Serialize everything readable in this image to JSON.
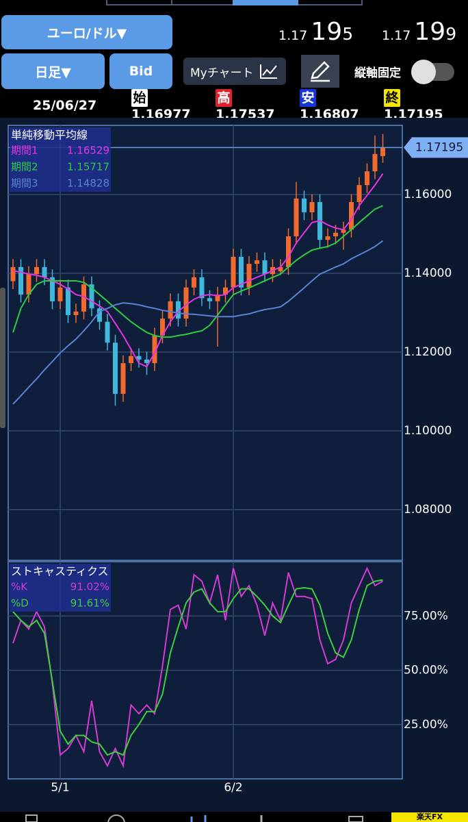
{
  "header": {
    "pair_button": "ユーロ/ドル▼",
    "bid": {
      "prefix": "1.17",
      "big": "19",
      "small": "5"
    },
    "ask": {
      "prefix": "1.17",
      "big": "19",
      "small": "9"
    },
    "period_button": "日足▼",
    "price_type_button": "Bid",
    "my_chart_button": "Myチャート",
    "axis_lock_label": "縦軸固定"
  },
  "ohlc_bar": {
    "date": "25/06/27",
    "items": [
      {
        "badge": "始",
        "value": "1.16977"
      },
      {
        "badge": "高",
        "value": "1.17537"
      },
      {
        "badge": "安",
        "value": "1.16807"
      },
      {
        "badge": "終",
        "value": "1.17195"
      }
    ]
  },
  "chart_data": [
    {
      "type": "candlestick",
      "title": "単純移動平均線",
      "categories": [
        null,
        null,
        null,
        null,
        null,
        null,
        "5/1",
        null,
        null,
        null,
        null,
        null,
        null,
        null,
        null,
        null,
        null,
        null,
        null,
        null,
        null,
        null,
        null,
        null,
        null,
        null,
        null,
        null,
        "6/2",
        null,
        null,
        null,
        null,
        null,
        null,
        null,
        null,
        null,
        null,
        null,
        null,
        null,
        null,
        null,
        null,
        null,
        null,
        null
      ],
      "open": [
        1.138,
        1.1416,
        1.1346,
        1.1398,
        1.1416,
        1.139,
        1.1329,
        1.1364,
        1.1294,
        1.1303,
        1.1372,
        1.1311,
        1.1277,
        1.1224,
        1.1094,
        1.1172,
        1.119,
        1.1181,
        1.1172,
        1.1242,
        1.1285,
        1.1329,
        1.1285,
        1.1364,
        1.139,
        1.1337,
        1.1329,
        1.1346,
        1.1364,
        1.1442,
        1.1364,
        1.1424,
        1.1433,
        1.1398,
        1.1405,
        1.1416,
        1.1494,
        1.159,
        1.1555,
        1.1581,
        1.1485,
        1.1494,
        1.1503,
        1.1511,
        1.1581,
        1.1624,
        1.1659,
        1.16977
      ],
      "high": [
        1.1436,
        1.1436,
        1.1418,
        1.1436,
        1.1436,
        1.141,
        1.1384,
        1.1384,
        1.1323,
        1.1392,
        1.1392,
        1.1331,
        1.1297,
        1.1244,
        1.1192,
        1.121,
        1.121,
        1.1201,
        1.1262,
        1.1305,
        1.1349,
        1.1349,
        1.1384,
        1.141,
        1.141,
        1.1357,
        1.1366,
        1.1384,
        1.1462,
        1.1462,
        1.1444,
        1.1453,
        1.1453,
        1.1436,
        1.1436,
        1.1514,
        1.1632,
        1.161,
        1.1601,
        1.1601,
        1.1514,
        1.1523,
        1.1531,
        1.1601,
        1.1644,
        1.1679,
        1.175,
        1.17537
      ],
      "low": [
        1.136,
        1.1326,
        1.1326,
        1.1378,
        1.137,
        1.1309,
        1.1309,
        1.1274,
        1.1274,
        1.1283,
        1.1291,
        1.1257,
        1.1204,
        1.1064,
        1.1074,
        1.1152,
        1.1161,
        1.1142,
        1.1152,
        1.1222,
        1.1265,
        1.1265,
        1.1265,
        1.1344,
        1.1317,
        1.1309,
        1.1214,
        1.1326,
        1.1344,
        1.1344,
        1.1344,
        1.1404,
        1.1378,
        1.1378,
        1.1396,
        1.1396,
        1.1474,
        1.1535,
        1.1535,
        1.1465,
        1.1465,
        1.1474,
        1.146,
        1.1491,
        1.1561,
        1.1604,
        1.1639,
        1.16807
      ],
      "close": [
        1.1416,
        1.1346,
        1.1398,
        1.1416,
        1.139,
        1.1329,
        1.1364,
        1.1294,
        1.1303,
        1.1372,
        1.1311,
        1.1277,
        1.1224,
        1.1094,
        1.1172,
        1.119,
        1.1181,
        1.1172,
        1.1242,
        1.1285,
        1.1329,
        1.1285,
        1.1364,
        1.139,
        1.1337,
        1.1329,
        1.1346,
        1.1364,
        1.1442,
        1.1364,
        1.1424,
        1.1433,
        1.1398,
        1.1416,
        1.1416,
        1.1494,
        1.159,
        1.1555,
        1.1581,
        1.1485,
        1.1494,
        1.1503,
        1.1511,
        1.1581,
        1.1624,
        1.1659,
        1.1703,
        1.17195
      ],
      "up_color": "#f26a2e",
      "down_color": "#3fb8dc",
      "series": [
        {
          "name": "期間1",
          "color": "#e535e0",
          "last_label": "1.16529",
          "values": [
            1.1407,
            1.1403,
            1.1398,
            1.1395,
            1.139,
            1.1381,
            1.1372,
            1.136,
            1.1346,
            1.1341,
            1.1329,
            1.1317,
            1.1303,
            1.1273,
            1.1242,
            1.1207,
            1.1172,
            1.1163,
            1.1198,
            1.1242,
            1.1277,
            1.1303,
            1.132,
            1.1334,
            1.1343,
            1.1346,
            1.1343,
            1.1346,
            1.1364,
            1.1372,
            1.1381,
            1.139,
            1.1398,
            1.1407,
            1.1416,
            1.1442,
            1.1477,
            1.1503,
            1.1529,
            1.1534,
            1.1523,
            1.1515,
            1.1511,
            1.1537,
            1.1572,
            1.1598,
            1.1624,
            1.16529
          ]
        },
        {
          "name": "期間2",
          "color": "#2ecc40",
          "last_label": "1.15717",
          "values": [
            1.125,
            1.1311,
            1.1346,
            1.1372,
            1.1381,
            1.1381,
            1.1381,
            1.1381,
            1.1381,
            1.1377,
            1.1363,
            1.1346,
            1.1329,
            1.1311,
            1.1294,
            1.1277,
            1.1263,
            1.125,
            1.1242,
            1.1238,
            1.1238,
            1.1242,
            1.1245,
            1.125,
            1.1254,
            1.1268,
            1.1294,
            1.132,
            1.1346,
            1.1355,
            1.1363,
            1.1372,
            1.1381,
            1.139,
            1.1398,
            1.1416,
            1.1433,
            1.1447,
            1.1459,
            1.1464,
            1.1468,
            1.1477,
            1.1494,
            1.1511,
            1.1529,
            1.1546,
            1.1563,
            1.15717
          ]
        },
        {
          "name": "期間3",
          "color": "#5b82d6",
          "last_label": "1.14828",
          "values": [
            1.1068,
            1.1089,
            1.1111,
            1.1132,
            1.1155,
            1.1176,
            1.1198,
            1.1216,
            1.1233,
            1.1254,
            1.1277,
            1.1303,
            1.1311,
            1.132,
            1.1325,
            1.1323,
            1.132,
            1.1315,
            1.1311,
            1.1306,
            1.1303,
            1.1299,
            1.1297,
            1.1296,
            1.1294,
            1.1292,
            1.129,
            1.129,
            1.129,
            1.1294,
            1.1297,
            1.1303,
            1.1308,
            1.1311,
            1.1315,
            1.1329,
            1.1346,
            1.1363,
            1.1381,
            1.1398,
            1.1407,
            1.1416,
            1.1424,
            1.1437,
            1.1447,
            1.1457,
            1.1468,
            1.14828
          ]
        }
      ],
      "last_price_label": "1.17195",
      "ylim": [
        1.06713,
        1.17757
      ],
      "yticks": [
        {
          "value": 1.08,
          "label": "1.08000"
        },
        {
          "value": 1.1,
          "label": "1.10000"
        },
        {
          "value": 1.12,
          "label": "1.12000"
        },
        {
          "value": 1.14,
          "label": "1.14000"
        },
        {
          "value": 1.16,
          "label": "1.16000"
        }
      ],
      "grid": true
    },
    {
      "type": "line",
      "title": "ストキャスティクス",
      "categories": [
        null,
        null,
        null,
        null,
        null,
        null,
        "5/1",
        null,
        null,
        null,
        null,
        null,
        null,
        null,
        null,
        null,
        null,
        null,
        null,
        null,
        null,
        null,
        null,
        null,
        null,
        null,
        null,
        null,
        "6/2",
        null,
        null,
        null,
        null,
        null,
        null,
        null,
        null,
        null,
        null,
        null,
        null,
        null,
        null,
        null,
        null,
        null,
        null,
        null
      ],
      "series": [
        {
          "name": "%K",
          "color": "#d63ad6",
          "last_label": "91.02%",
          "values": [
            62.5,
            73,
            69,
            77,
            70,
            44,
            11,
            14,
            20,
            12.5,
            36,
            12.5,
            6,
            14,
            6,
            34,
            30,
            34,
            30,
            52,
            78,
            80,
            69,
            94,
            91,
            81,
            94,
            73,
            97,
            84,
            89,
            80,
            66,
            81,
            73,
            95,
            84,
            84,
            83,
            64,
            53,
            55,
            64,
            81,
            89,
            97,
            89,
            91.02
          ]
        },
        {
          "name": "%D",
          "color": "#3fcf3f",
          "last_label": "91.61%",
          "values": [
            77,
            73,
            70,
            73,
            67,
            45,
            22,
            16,
            20,
            20,
            17,
            16,
            11,
            12.5,
            11,
            20,
            25,
            31,
            31,
            39,
            58,
            70,
            81,
            86,
            87.5,
            81,
            77,
            77,
            83,
            87.5,
            87.5,
            84,
            80,
            75,
            72,
            80,
            87.5,
            88,
            87.5,
            80,
            67,
            58,
            56,
            64,
            78,
            89,
            91,
            91.61
          ]
        }
      ],
      "ylim": [
        0,
        100
      ],
      "yticks": [
        {
          "value": 25,
          "label": "25.00%"
        },
        {
          "value": 50,
          "label": "50.00%"
        },
        {
          "value": 75,
          "label": "75.00%"
        }
      ],
      "grid": true
    }
  ],
  "footer": {
    "brand": "楽天FX"
  }
}
